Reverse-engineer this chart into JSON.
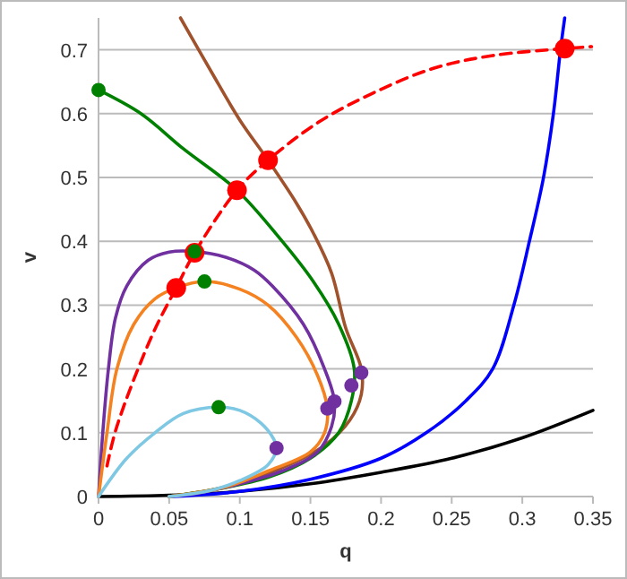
{
  "chart_data": {
    "type": "line",
    "xlabel": "q",
    "ylabel": "v",
    "xlim": [
      0,
      0.35
    ],
    "ylim": [
      0,
      0.75
    ],
    "xticks": [
      0,
      0.05,
      0.1,
      0.15,
      0.2,
      0.25,
      0.3,
      0.35
    ],
    "yticks": [
      0,
      0.1,
      0.2,
      0.3,
      0.4,
      0.5,
      0.6,
      0.7
    ],
    "grid": "y",
    "series": [
      {
        "color": "#000000",
        "line_style": "solid",
        "x": [
          0,
          0.05,
          0.1,
          0.15,
          0.2,
          0.25,
          0.3,
          0.35
        ],
        "values": [
          0,
          0.002,
          0.008,
          0.02,
          0.038,
          0.06,
          0.092,
          0.135
        ]
      },
      {
        "color": "#0000ff",
        "line_style": "solid",
        "x": [
          0.05,
          0.1,
          0.15,
          0.2,
          0.232,
          0.26,
          0.279,
          0.294,
          0.305,
          0.315,
          0.322,
          0.327,
          0.33
        ],
        "values": [
          0,
          0.008,
          0.027,
          0.06,
          0.1,
          0.15,
          0.2,
          0.3,
          0.4,
          0.5,
          0.6,
          0.7,
          0.75
        ]
      },
      {
        "color": "#a0522d",
        "line_style": "solid",
        "x": [
          0.058,
          0.08,
          0.1,
          0.12,
          0.14,
          0.152,
          0.165,
          0.175,
          0.186,
          0.186,
          0.178,
          0.16,
          0.13,
          0.09,
          0.05
        ],
        "values": [
          0.75,
          0.665,
          0.59,
          0.527,
          0.46,
          0.413,
          0.35,
          0.264,
          0.2,
          0.16,
          0.12,
          0.08,
          0.045,
          0.015,
          0
        ]
      },
      {
        "color": "#008000",
        "line_style": "solid",
        "x": [
          0,
          0.03,
          0.06,
          0.098,
          0.13,
          0.152,
          0.17,
          0.181,
          0.179,
          0.17,
          0.15,
          0.12,
          0.08,
          0.05
        ],
        "values": [
          0.637,
          0.6,
          0.545,
          0.48,
          0.4,
          0.337,
          0.27,
          0.2,
          0.15,
          0.1,
          0.06,
          0.03,
          0.01,
          0
        ]
      },
      {
        "color": "#7030a0",
        "line_style": "solid",
        "x": [
          0,
          0.003,
          0.007,
          0.012,
          0.02,
          0.035,
          0.05,
          0.068,
          0.09,
          0.11,
          0.123,
          0.145,
          0.16,
          0.167,
          0.165,
          0.155,
          0.13,
          0.1,
          0.07,
          0.05
        ],
        "values": [
          0,
          0.1,
          0.2,
          0.28,
          0.33,
          0.37,
          0.383,
          0.384,
          0.375,
          0.355,
          0.33,
          0.27,
          0.2,
          0.149,
          0.11,
          0.07,
          0.04,
          0.02,
          0.005,
          0
        ]
      },
      {
        "color": "#f58220",
        "line_style": "solid",
        "x": [
          0,
          0.006,
          0.013,
          0.025,
          0.04,
          0.055,
          0.075,
          0.1,
          0.12,
          0.14,
          0.155,
          0.162,
          0.16,
          0.15,
          0.12,
          0.09,
          0.05
        ],
        "values": [
          0,
          0.1,
          0.2,
          0.27,
          0.31,
          0.327,
          0.337,
          0.325,
          0.3,
          0.25,
          0.19,
          0.138,
          0.1,
          0.07,
          0.04,
          0.015,
          0
        ]
      },
      {
        "color": "#7ec8e3",
        "line_style": "solid",
        "x": [
          0,
          0.02,
          0.04,
          0.06,
          0.085,
          0.1,
          0.115,
          0.124,
          0.126,
          0.12,
          0.1,
          0.08,
          0.05
        ],
        "values": [
          0,
          0.06,
          0.1,
          0.13,
          0.14,
          0.135,
          0.115,
          0.09,
          0.076,
          0.05,
          0.025,
          0.01,
          0
        ]
      },
      {
        "color": "#ff0000",
        "line_style": "dashed",
        "x": [
          0.006,
          0.013,
          0.038,
          0.055,
          0.068,
          0.098,
          0.12,
          0.156,
          0.194,
          0.237,
          0.279,
          0.33,
          0.349
        ],
        "values": [
          0.048,
          0.11,
          0.253,
          0.327,
          0.382,
          0.48,
          0.527,
          0.587,
          0.632,
          0.671,
          0.691,
          0.702,
          0.705
        ]
      },
      {
        "type": "scatter",
        "marker": "circle",
        "color": "#ff0000",
        "x": [
          0.055,
          0.068,
          0.098,
          0.12,
          0.33
        ],
        "values": [
          0.327,
          0.382,
          0.48,
          0.527,
          0.702
        ]
      },
      {
        "type": "scatter",
        "marker": "circle",
        "color": "#008000",
        "x": [
          0,
          0.068,
          0.075,
          0.085
        ],
        "values": [
          0.637,
          0.384,
          0.337,
          0.14
        ]
      },
      {
        "type": "scatter",
        "marker": "circle",
        "color": "#7030a0",
        "x": [
          0.126,
          0.162,
          0.167,
          0.179,
          0.186
        ],
        "values": [
          0.076,
          0.138,
          0.149,
          0.174,
          0.194
        ]
      }
    ]
  }
}
